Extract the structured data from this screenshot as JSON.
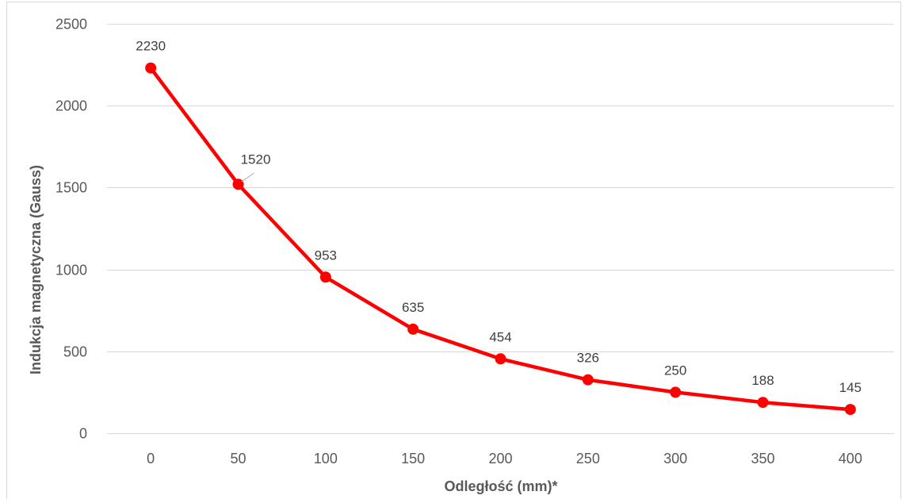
{
  "chart_data": {
    "type": "line",
    "title": "",
    "xlabel": "Odległość (mm)*",
    "ylabel": "Indukcja magnetyczna (Gauss)",
    "x": [
      0,
      50,
      100,
      150,
      200,
      250,
      300,
      350,
      400
    ],
    "x_tick_labels": [
      "0",
      "50",
      "100",
      "150",
      "200",
      "250",
      "300",
      "350",
      "400"
    ],
    "y_tick_labels": [
      "0",
      "500",
      "1000",
      "1500",
      "2000",
      "2500"
    ],
    "y_ticks": [
      0,
      500,
      1000,
      1500,
      2000,
      2500
    ],
    "ylim": [
      0,
      2500
    ],
    "grid": true,
    "legend": "none",
    "series": [
      {
        "values": [
          2230,
          1520,
          953,
          635,
          454,
          326,
          250,
          188,
          145
        ],
        "data_labels": [
          "2230",
          "1520",
          "953",
          "635",
          "454",
          "326",
          "250",
          "188",
          "145"
        ],
        "color": "#ff0000"
      }
    ],
    "gridline_color": "#d9d9d9",
    "border_color": "#d9d9d9"
  }
}
